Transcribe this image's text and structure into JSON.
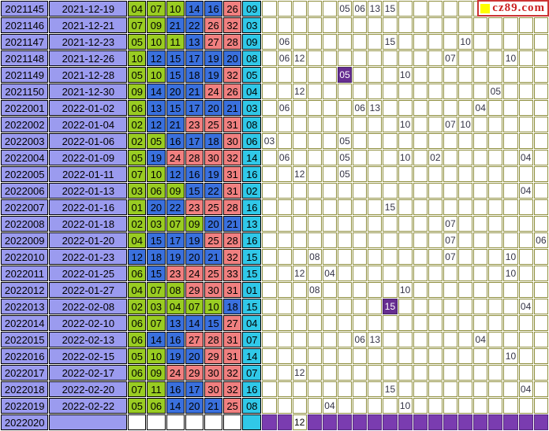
{
  "logo": {
    "text": "cz89.com"
  },
  "colors": {
    "row_header": "#9b9bef",
    "red_zone1": "#99cc22",
    "red_zone2": "#3a70dd",
    "red_zone3": "#f08080",
    "blue_ball": "#30c8e8",
    "grid_line": "#8f8f3e",
    "hit_cell": "#662d91",
    "future_strip": "#7a3cb0",
    "logo_red": "#cc2222",
    "logo_yellow": "#ffff00"
  },
  "chart_data": {
    "type": "table",
    "grid_columns": 19,
    "columns": [
      "period",
      "date",
      "red1",
      "red2",
      "red3",
      "red4",
      "red5",
      "red6",
      "blue",
      "trend_grid"
    ],
    "zone_rule": {
      "green_max": 11,
      "blue_max": 22,
      "red_max": 33
    },
    "rows": [
      {
        "period": "2021145",
        "date": "2021-12-19",
        "reds": [
          "04",
          "07",
          "10",
          "14",
          "16",
          "26"
        ],
        "blue": "09",
        "marks": [
          {
            "c": 6,
            "v": "05"
          },
          {
            "c": 7,
            "v": "06"
          },
          {
            "c": 8,
            "v": "13"
          },
          {
            "c": 9,
            "v": "15"
          }
        ]
      },
      {
        "period": "2021146",
        "date": "2021-12-21",
        "reds": [
          "07",
          "09",
          "21",
          "22",
          "26",
          "32"
        ],
        "blue": "03",
        "marks": []
      },
      {
        "period": "2021147",
        "date": "2021-12-23",
        "reds": [
          "05",
          "10",
          "11",
          "13",
          "27",
          "28"
        ],
        "blue": "09",
        "marks": [
          {
            "c": 2,
            "v": "06"
          },
          {
            "c": 9,
            "v": "15"
          },
          {
            "c": 14,
            "v": "10"
          }
        ]
      },
      {
        "period": "2021148",
        "date": "2021-12-26",
        "reds": [
          "10",
          "12",
          "15",
          "17",
          "19",
          "20"
        ],
        "blue": "08",
        "marks": [
          {
            "c": 2,
            "v": "06"
          },
          {
            "c": 3,
            "v": "12"
          },
          {
            "c": 13,
            "v": "07"
          },
          {
            "c": 17,
            "v": "10"
          }
        ]
      },
      {
        "period": "2021149",
        "date": "2021-12-28",
        "reds": [
          "05",
          "10",
          "15",
          "18",
          "19",
          "32"
        ],
        "blue": "05",
        "marks": [
          {
            "c": 6,
            "v": "05",
            "hit": true
          },
          {
            "c": 10,
            "v": "10"
          }
        ]
      },
      {
        "period": "2021150",
        "date": "2021-12-30",
        "reds": [
          "09",
          "14",
          "20",
          "21",
          "24",
          "26"
        ],
        "blue": "04",
        "marks": [
          {
            "c": 3,
            "v": "12"
          },
          {
            "c": 16,
            "v": "05"
          }
        ]
      },
      {
        "period": "2022001",
        "date": "2022-01-02",
        "reds": [
          "06",
          "13",
          "15",
          "17",
          "20",
          "21"
        ],
        "blue": "03",
        "marks": [
          {
            "c": 2,
            "v": "06"
          },
          {
            "c": 7,
            "v": "06"
          },
          {
            "c": 8,
            "v": "13"
          },
          {
            "c": 15,
            "v": "04"
          }
        ]
      },
      {
        "period": "2022002",
        "date": "2022-01-04",
        "reds": [
          "02",
          "12",
          "21",
          "23",
          "25",
          "31"
        ],
        "blue": "08",
        "marks": [
          {
            "c": 10,
            "v": "10"
          },
          {
            "c": 13,
            "v": "07"
          },
          {
            "c": 14,
            "v": "10"
          }
        ]
      },
      {
        "period": "2022003",
        "date": "2022-01-06",
        "reds": [
          "02",
          "05",
          "16",
          "17",
          "18",
          "30"
        ],
        "blue": "06",
        "marks": [
          {
            "c": 1,
            "v": "03"
          },
          {
            "c": 6,
            "v": "05"
          }
        ]
      },
      {
        "period": "2022004",
        "date": "2022-01-09",
        "reds": [
          "05",
          "19",
          "24",
          "28",
          "30",
          "32"
        ],
        "blue": "14",
        "marks": [
          {
            "c": 2,
            "v": "06"
          },
          {
            "c": 6,
            "v": "05"
          },
          {
            "c": 10,
            "v": "10"
          },
          {
            "c": 12,
            "v": "02"
          },
          {
            "c": 18,
            "v": "04"
          }
        ]
      },
      {
        "period": "2022005",
        "date": "2022-01-11",
        "reds": [
          "07",
          "10",
          "12",
          "16",
          "19",
          "31"
        ],
        "blue": "16",
        "marks": [
          {
            "c": 3,
            "v": "12"
          },
          {
            "c": 6,
            "v": "05"
          }
        ]
      },
      {
        "period": "2022006",
        "date": "2022-01-13",
        "reds": [
          "03",
          "06",
          "09",
          "15",
          "22",
          "31"
        ],
        "blue": "02",
        "marks": [
          {
            "c": 18,
            "v": "04"
          }
        ]
      },
      {
        "period": "2022007",
        "date": "2022-01-16",
        "reds": [
          "01",
          "20",
          "22",
          "23",
          "25",
          "28"
        ],
        "blue": "16",
        "marks": [
          {
            "c": 9,
            "v": "15"
          }
        ]
      },
      {
        "period": "2022008",
        "date": "2022-01-18",
        "reds": [
          "02",
          "03",
          "07",
          "09",
          "20",
          "21"
        ],
        "blue": "13",
        "marks": [
          {
            "c": 13,
            "v": "07"
          }
        ]
      },
      {
        "period": "2022009",
        "date": "2022-01-20",
        "reds": [
          "04",
          "15",
          "17",
          "19",
          "25",
          "28"
        ],
        "blue": "16",
        "marks": [
          {
            "c": 13,
            "v": "07"
          },
          {
            "c": 19,
            "v": "06"
          }
        ]
      },
      {
        "period": "2022010",
        "date": "2022-01-23",
        "reds": [
          "12",
          "18",
          "19",
          "20",
          "21",
          "32"
        ],
        "blue": "15",
        "marks": [
          {
            "c": 4,
            "v": "08"
          },
          {
            "c": 13,
            "v": "07"
          },
          {
            "c": 17,
            "v": "10"
          }
        ]
      },
      {
        "period": "2022011",
        "date": "2022-01-25",
        "reds": [
          "06",
          "15",
          "23",
          "24",
          "25",
          "33"
        ],
        "blue": "15",
        "marks": [
          {
            "c": 3,
            "v": "12"
          },
          {
            "c": 5,
            "v": "04"
          },
          {
            "c": 17,
            "v": "10"
          }
        ]
      },
      {
        "period": "2022012",
        "date": "2022-01-27",
        "reds": [
          "04",
          "07",
          "08",
          "29",
          "30",
          "31"
        ],
        "blue": "01",
        "marks": [
          {
            "c": 4,
            "v": "08"
          },
          {
            "c": 10,
            "v": "10"
          }
        ]
      },
      {
        "period": "2022013",
        "date": "2022-02-08",
        "reds": [
          "02",
          "03",
          "04",
          "07",
          "10",
          "18"
        ],
        "blue": "15",
        "marks": [
          {
            "c": 9,
            "v": "15",
            "hit": true
          },
          {
            "c": 18,
            "v": "04"
          }
        ]
      },
      {
        "period": "2022014",
        "date": "2022-02-10",
        "reds": [
          "06",
          "07",
          "13",
          "14",
          "15",
          "27"
        ],
        "blue": "04",
        "marks": []
      },
      {
        "period": "2022015",
        "date": "2022-02-13",
        "reds": [
          "06",
          "14",
          "16",
          "27",
          "28",
          "31"
        ],
        "blue": "07",
        "marks": [
          {
            "c": 7,
            "v": "06"
          },
          {
            "c": 8,
            "v": "13"
          },
          {
            "c": 15,
            "v": "04"
          }
        ]
      },
      {
        "period": "2022016",
        "date": "2022-02-15",
        "reds": [
          "05",
          "10",
          "19",
          "20",
          "29",
          "31"
        ],
        "blue": "14",
        "marks": [
          {
            "c": 17,
            "v": "10"
          }
        ]
      },
      {
        "period": "2022017",
        "date": "2022-02-17",
        "reds": [
          "06",
          "09",
          "24",
          "29",
          "30",
          "32"
        ],
        "blue": "07",
        "marks": [
          {
            "c": 3,
            "v": "12"
          }
        ]
      },
      {
        "period": "2022018",
        "date": "2022-02-20",
        "reds": [
          "07",
          "11",
          "16",
          "17",
          "30",
          "32"
        ],
        "blue": "16",
        "marks": [
          {
            "c": 9,
            "v": "15"
          },
          {
            "c": 18,
            "v": "04"
          }
        ]
      },
      {
        "period": "2022019",
        "date": "2022-02-22",
        "reds": [
          "05",
          "06",
          "14",
          "20",
          "21",
          "25"
        ],
        "blue": "08",
        "marks": [
          {
            "c": 5,
            "v": "04"
          },
          {
            "c": 10,
            "v": "10"
          }
        ]
      },
      {
        "period": "2022020",
        "date": "",
        "reds": [
          "",
          "",
          "",
          "",
          "",
          ""
        ],
        "blue": "",
        "future": true,
        "marks": [
          {
            "c": 3,
            "v": "12"
          }
        ]
      }
    ]
  }
}
